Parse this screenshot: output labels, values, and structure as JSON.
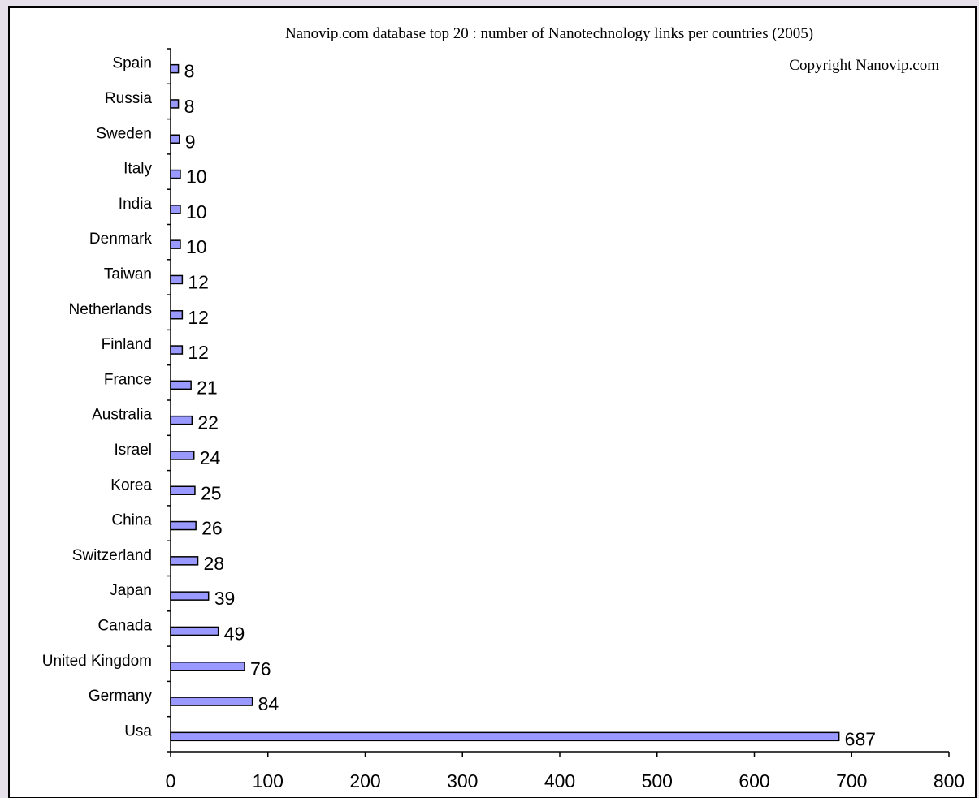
{
  "chart_data": {
    "type": "bar",
    "orientation": "horizontal",
    "title": "Nanovip.com database top 20 : number of Nanotechnology links per countries (2005)",
    "annotation": "Copyright Nanovip.com",
    "categories": [
      "Spain",
      "Russia",
      "Sweden",
      "Italy",
      "India",
      "Denmark",
      "Taiwan",
      "Netherlands",
      "Finland",
      "France",
      "Australia",
      "Israel",
      "Korea",
      "China",
      "Switzerland",
      "Japan",
      "Canada",
      "United Kingdom",
      "Germany",
      "Usa"
    ],
    "values": [
      8,
      8,
      9,
      10,
      10,
      10,
      12,
      12,
      12,
      21,
      22,
      24,
      25,
      26,
      28,
      39,
      49,
      76,
      84,
      687
    ],
    "xlim": [
      0,
      800
    ],
    "xticks": [
      0,
      100,
      200,
      300,
      400,
      500,
      600,
      700,
      800
    ],
    "grid": false,
    "data_labels": true,
    "colors": {
      "bar_fill": "#9999ff",
      "bar_stroke": "#000000",
      "plot_bg": "#ffffff",
      "page_bg": "#e5e0ea"
    }
  }
}
